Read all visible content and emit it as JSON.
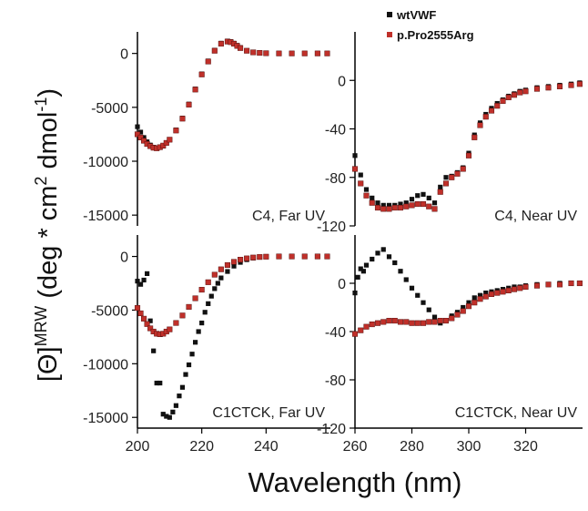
{
  "axis_titles": {
    "x": "Wavelength (nm)",
    "y_prefix": "[Θ]",
    "y_sup1": "MRW",
    "y_main": " (deg * cm",
    "y_sup2": "2",
    "y_mid": " dmol",
    "y_sup3": "-1",
    "y_end": ")"
  },
  "legend": [
    {
      "name": "wtVWF",
      "color": "#111111"
    },
    {
      "name": "p.Pro2555Arg",
      "color": "#c0302a"
    }
  ],
  "chart_data": [
    {
      "type": "scatter",
      "panel": "C4, Far UV",
      "xlim": [
        200,
        260
      ],
      "ylim": [
        -16000,
        2000
      ],
      "xticks": [],
      "yticks": [
        0,
        -5000,
        -10000,
        -15000
      ],
      "ytick_labels": [
        "0",
        "-5000",
        "-10000",
        "-15000"
      ],
      "series": [
        {
          "name": "wtVWF",
          "color": "#111111",
          "x": [
            200,
            201,
            202,
            203,
            204,
            205,
            206,
            207,
            208,
            209,
            210,
            212,
            214,
            216,
            218,
            220,
            222,
            224,
            226,
            228,
            229,
            230,
            231,
            232,
            234,
            236,
            238,
            240,
            244,
            248,
            252,
            256,
            259
          ],
          "y": [
            -6800,
            -7300,
            -7800,
            -8200,
            -8500,
            -8700,
            -8800,
            -8700,
            -8600,
            -8300,
            -8000,
            -7100,
            -6000,
            -4700,
            -3300,
            -1900,
            -700,
            300,
            950,
            1150,
            1100,
            950,
            750,
            550,
            250,
            100,
            50,
            20,
            0,
            0,
            0,
            0,
            0
          ]
        },
        {
          "name": "p.Pro2555Arg",
          "color": "#c0302a",
          "x": [
            200,
            201,
            202,
            203,
            204,
            205,
            206,
            207,
            208,
            209,
            210,
            212,
            214,
            216,
            218,
            220,
            222,
            224,
            226,
            228,
            229,
            230,
            231,
            232,
            234,
            236,
            238,
            240,
            244,
            248,
            252,
            256,
            259
          ],
          "y": [
            -7500,
            -7800,
            -8100,
            -8400,
            -8600,
            -8750,
            -8800,
            -8700,
            -8550,
            -8300,
            -8000,
            -7150,
            -6050,
            -4750,
            -3350,
            -1950,
            -750,
            250,
            900,
            1100,
            1050,
            900,
            700,
            500,
            250,
            100,
            50,
            20,
            0,
            0,
            0,
            0,
            0
          ]
        }
      ]
    },
    {
      "type": "scatter",
      "panel": "C4, Near UV",
      "xlim": [
        260,
        340
      ],
      "ylim": [
        -120,
        40
      ],
      "xticks": [],
      "yticks": [
        0,
        -40,
        -80,
        -120
      ],
      "ytick_labels": [
        "0",
        "-40",
        "-80",
        "-120"
      ],
      "series": [
        {
          "name": "wtVWF",
          "color": "#111111",
          "x": [
            260,
            262,
            264,
            266,
            268,
            270,
            272,
            274,
            276,
            278,
            280,
            282,
            284,
            286,
            288,
            290,
            292,
            294,
            296,
            298,
            300,
            302,
            304,
            306,
            308,
            310,
            312,
            314,
            316,
            318,
            320,
            324,
            328,
            332,
            336,
            339
          ],
          "y": [
            -62,
            -78,
            -90,
            -97,
            -101,
            -103,
            -103,
            -103,
            -102,
            -101,
            -98,
            -95,
            -94,
            -97,
            -101,
            -88,
            -80,
            -79,
            -76,
            -72,
            -60,
            -45,
            -35,
            -28,
            -23,
            -19,
            -16,
            -13,
            -11,
            -9,
            -8,
            -6,
            -5,
            -4,
            -3,
            -2
          ]
        },
        {
          "name": "p.Pro2555Arg",
          "color": "#c0302a",
          "x": [
            260,
            262,
            264,
            266,
            268,
            270,
            272,
            274,
            276,
            278,
            280,
            282,
            284,
            286,
            288,
            290,
            292,
            294,
            296,
            298,
            300,
            302,
            304,
            306,
            308,
            310,
            312,
            314,
            316,
            318,
            320,
            324,
            328,
            332,
            336,
            339
          ],
          "y": [
            -73,
            -85,
            -95,
            -101,
            -105,
            -106,
            -106,
            -105,
            -105,
            -104,
            -103,
            -102,
            -102,
            -104,
            -106,
            -92,
            -85,
            -80,
            -77,
            -73,
            -62,
            -47,
            -37,
            -30,
            -25,
            -21,
            -17,
            -14,
            -12,
            -10,
            -9,
            -7,
            -6,
            -5,
            -4,
            -3
          ]
        }
      ]
    },
    {
      "type": "scatter",
      "panel": "C1CTCK, Far UV",
      "xlim": [
        200,
        260
      ],
      "ylim": [
        -16000,
        2000
      ],
      "xticks": [
        200,
        220,
        240
      ],
      "yticks": [
        0,
        -5000,
        -10000,
        -15000
      ],
      "ytick_labels": [
        "0",
        "-5000",
        "-10000",
        "-15000"
      ],
      "series": [
        {
          "name": "wtVWF",
          "color": "#111111",
          "x": [
            200,
            201,
            202,
            203,
            204,
            205,
            206,
            207,
            208,
            209,
            210,
            211,
            212,
            213,
            214,
            215,
            216,
            217,
            218,
            219,
            220,
            221,
            222,
            223,
            224,
            225,
            226,
            228,
            230,
            232,
            234,
            236,
            238,
            240,
            244,
            248,
            252,
            256,
            259
          ],
          "y": [
            -2300,
            -2600,
            -2200,
            -1600,
            -6000,
            -8800,
            -11800,
            -11800,
            -14700,
            -14900,
            -15000,
            -14500,
            -13900,
            -13000,
            -12200,
            -11000,
            -10100,
            -9100,
            -8000,
            -7000,
            -6200,
            -5200,
            -4400,
            -3700,
            -3000,
            -2500,
            -2000,
            -1400,
            -900,
            -550,
            -300,
            -150,
            -70,
            -30,
            -10,
            0,
            0,
            0,
            0
          ]
        },
        {
          "name": "p.Pro2555Arg",
          "color": "#c0302a",
          "x": [
            200,
            201,
            202,
            203,
            204,
            205,
            206,
            207,
            208,
            209,
            210,
            212,
            214,
            216,
            218,
            220,
            222,
            224,
            226,
            228,
            230,
            232,
            234,
            236,
            238,
            240,
            244,
            248,
            252,
            256,
            259
          ],
          "y": [
            -4800,
            -5300,
            -5800,
            -6300,
            -6700,
            -7000,
            -7200,
            -7250,
            -7200,
            -7000,
            -6800,
            -6200,
            -5500,
            -4700,
            -3900,
            -3100,
            -2400,
            -1700,
            -1200,
            -800,
            -500,
            -300,
            -180,
            -100,
            -50,
            -20,
            0,
            0,
            0,
            0,
            0
          ]
        }
      ]
    },
    {
      "type": "scatter",
      "panel": "C1CTCK, Near UV",
      "xlim": [
        260,
        340
      ],
      "ylim": [
        -120,
        40
      ],
      "xticks": [
        260,
        280,
        300,
        320
      ],
      "yticks": [
        0,
        -40,
        -80,
        -120
      ],
      "ytick_labels": [
        "0",
        "-40",
        "-80",
        "-120"
      ],
      "series": [
        {
          "name": "wtVWF",
          "color": "#111111",
          "x": [
            260,
            261,
            262,
            263,
            264,
            266,
            268,
            270,
            272,
            274,
            276,
            278,
            280,
            282,
            284,
            286,
            288,
            290,
            292,
            294,
            296,
            298,
            300,
            302,
            304,
            306,
            308,
            310,
            312,
            314,
            316,
            318,
            320,
            324,
            328,
            332,
            336,
            339
          ],
          "y": [
            -8,
            5,
            12,
            10,
            15,
            20,
            25,
            28,
            22,
            17,
            10,
            3,
            -4,
            -10,
            -16,
            -22,
            -28,
            -33,
            -31,
            -27,
            -24,
            -20,
            -16,
            -12,
            -10,
            -8,
            -7,
            -6,
            -5,
            -4,
            -3,
            -3,
            -2,
            -1,
            -1,
            0,
            0,
            0
          ]
        },
        {
          "name": "p.Pro2555Arg",
          "color": "#c0302a",
          "x": [
            260,
            262,
            264,
            266,
            268,
            270,
            272,
            274,
            276,
            278,
            280,
            282,
            284,
            286,
            288,
            290,
            292,
            294,
            296,
            298,
            300,
            302,
            304,
            306,
            308,
            310,
            312,
            314,
            316,
            318,
            320,
            324,
            328,
            332,
            336,
            339
          ],
          "y": [
            -42,
            -39,
            -36,
            -34,
            -33,
            -32,
            -31,
            -31,
            -32,
            -32,
            -33,
            -33,
            -33,
            -32,
            -32,
            -31,
            -31,
            -29,
            -26,
            -23,
            -19,
            -16,
            -13,
            -11,
            -9,
            -8,
            -7,
            -6,
            -5,
            -4,
            -3,
            -2,
            -1,
            -1,
            0,
            0
          ]
        }
      ]
    }
  ]
}
